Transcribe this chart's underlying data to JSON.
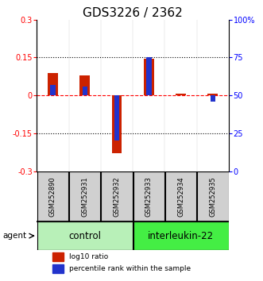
{
  "title": "GDS3226 / 2362",
  "samples": [
    "GSM252890",
    "GSM252931",
    "GSM252932",
    "GSM252933",
    "GSM252934",
    "GSM252935"
  ],
  "groups": [
    {
      "name": "control",
      "color": "#b8f0b8",
      "start": 0,
      "end": 2
    },
    {
      "name": "interleukin-22",
      "color": "#44ee44",
      "start": 3,
      "end": 5
    }
  ],
  "log10_ratio": [
    0.09,
    0.08,
    -0.23,
    0.145,
    0.008,
    0.008
  ],
  "percentile_rank": [
    57,
    56,
    20,
    75,
    50,
    46
  ],
  "ylim_left": [
    -0.3,
    0.3
  ],
  "ylim_right": [
    0,
    100
  ],
  "yticks_left": [
    -0.3,
    -0.15,
    0,
    0.15,
    0.3
  ],
  "yticks_right": [
    0,
    25,
    50,
    75,
    100
  ],
  "red_color": "#cc2200",
  "blue_color": "#2233cc",
  "gray_color": "#d0d0d0",
  "agent_label": "agent",
  "tick_fontsize": 7,
  "title_fontsize": 11,
  "sample_fontsize": 6,
  "group_fontsize": 8.5,
  "legend_fontsize": 6.5
}
